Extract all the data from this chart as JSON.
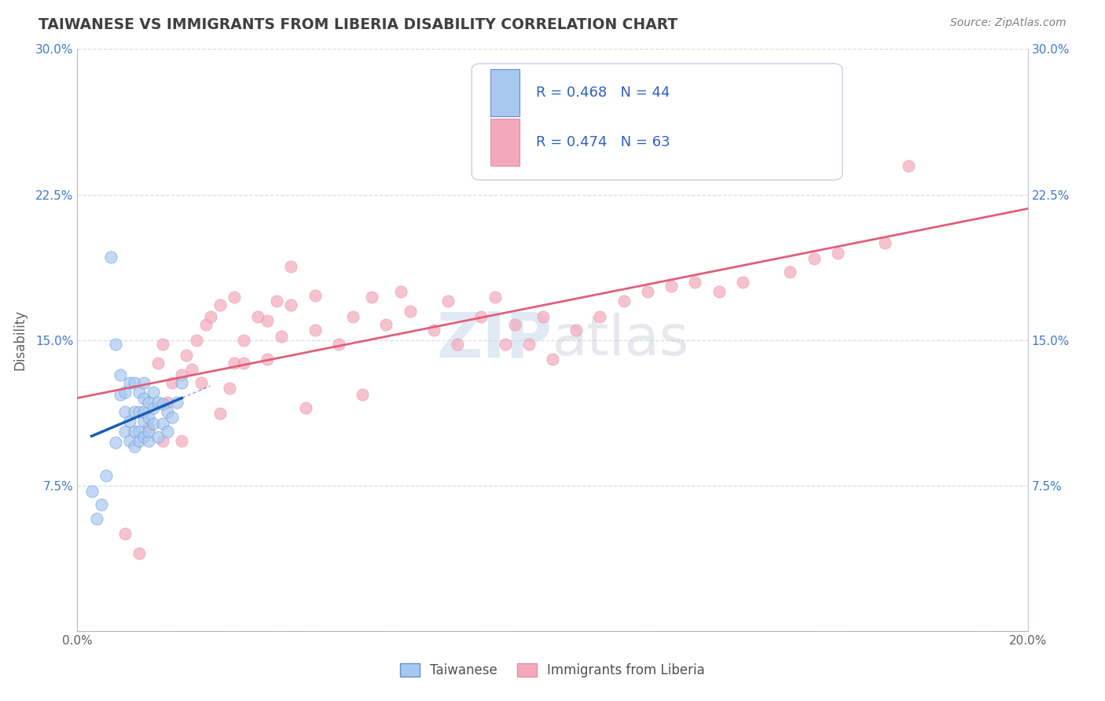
{
  "title": "TAIWANESE VS IMMIGRANTS FROM LIBERIA DISABILITY CORRELATION CHART",
  "source": "Source: ZipAtlas.com",
  "ylabel": "Disability",
  "watermark": "ZIPatlas",
  "xlim": [
    0.0,
    0.2
  ],
  "ylim": [
    0.0,
    0.3
  ],
  "xticks": [
    0.0,
    0.05,
    0.1,
    0.15,
    0.2
  ],
  "yticks": [
    0.0,
    0.075,
    0.15,
    0.225,
    0.3
  ],
  "taiwanese_R": 0.468,
  "taiwanese_N": 44,
  "liberia_R": 0.474,
  "liberia_N": 63,
  "taiwanese_color": "#a8c8f0",
  "liberia_color": "#f4a8bc",
  "taiwanese_line_color": "#1a5eb8",
  "liberia_line_color": "#e0607a",
  "taiwanese_edge_color": "#6090d0",
  "liberia_edge_color": "#e090a8",
  "legend_text_color": "#3060c0",
  "title_color": "#404040",
  "grid_color": "#d8dce8",
  "background_color": "#ffffff",
  "taiwanese_x": [
    0.003,
    0.004,
    0.005,
    0.006,
    0.007,
    0.008,
    0.008,
    0.009,
    0.009,
    0.01,
    0.01,
    0.01,
    0.011,
    0.011,
    0.011,
    0.012,
    0.012,
    0.012,
    0.012,
    0.013,
    0.013,
    0.013,
    0.013,
    0.014,
    0.014,
    0.014,
    0.014,
    0.014,
    0.015,
    0.015,
    0.015,
    0.015,
    0.016,
    0.016,
    0.016,
    0.017,
    0.017,
    0.018,
    0.018,
    0.019,
    0.019,
    0.02,
    0.021,
    0.022
  ],
  "taiwanese_y": [
    0.072,
    0.058,
    0.065,
    0.08,
    0.193,
    0.097,
    0.148,
    0.122,
    0.132,
    0.103,
    0.113,
    0.123,
    0.098,
    0.108,
    0.128,
    0.095,
    0.103,
    0.113,
    0.128,
    0.098,
    0.103,
    0.113,
    0.123,
    0.1,
    0.108,
    0.113,
    0.12,
    0.128,
    0.098,
    0.103,
    0.11,
    0.118,
    0.107,
    0.115,
    0.123,
    0.1,
    0.118,
    0.107,
    0.117,
    0.103,
    0.113,
    0.11,
    0.118,
    0.128
  ],
  "liberia_x": [
    0.01,
    0.013,
    0.015,
    0.017,
    0.018,
    0.018,
    0.019,
    0.02,
    0.022,
    0.022,
    0.023,
    0.024,
    0.025,
    0.026,
    0.027,
    0.028,
    0.03,
    0.03,
    0.032,
    0.033,
    0.033,
    0.035,
    0.035,
    0.038,
    0.04,
    0.04,
    0.042,
    0.043,
    0.045,
    0.045,
    0.048,
    0.05,
    0.05,
    0.055,
    0.058,
    0.06,
    0.062,
    0.065,
    0.068,
    0.07,
    0.075,
    0.078,
    0.08,
    0.085,
    0.088,
    0.09,
    0.092,
    0.095,
    0.098,
    0.1,
    0.105,
    0.11,
    0.115,
    0.12,
    0.125,
    0.13,
    0.135,
    0.14,
    0.15,
    0.155,
    0.16,
    0.17,
    0.175
  ],
  "liberia_y": [
    0.05,
    0.04,
    0.105,
    0.138,
    0.098,
    0.148,
    0.118,
    0.128,
    0.098,
    0.132,
    0.142,
    0.135,
    0.15,
    0.128,
    0.158,
    0.162,
    0.168,
    0.112,
    0.125,
    0.138,
    0.172,
    0.138,
    0.15,
    0.162,
    0.14,
    0.16,
    0.17,
    0.152,
    0.168,
    0.188,
    0.115,
    0.155,
    0.173,
    0.148,
    0.162,
    0.122,
    0.172,
    0.158,
    0.175,
    0.165,
    0.155,
    0.17,
    0.148,
    0.162,
    0.172,
    0.148,
    0.158,
    0.148,
    0.162,
    0.14,
    0.155,
    0.162,
    0.17,
    0.175,
    0.178,
    0.18,
    0.175,
    0.18,
    0.185,
    0.192,
    0.195,
    0.2,
    0.24
  ]
}
